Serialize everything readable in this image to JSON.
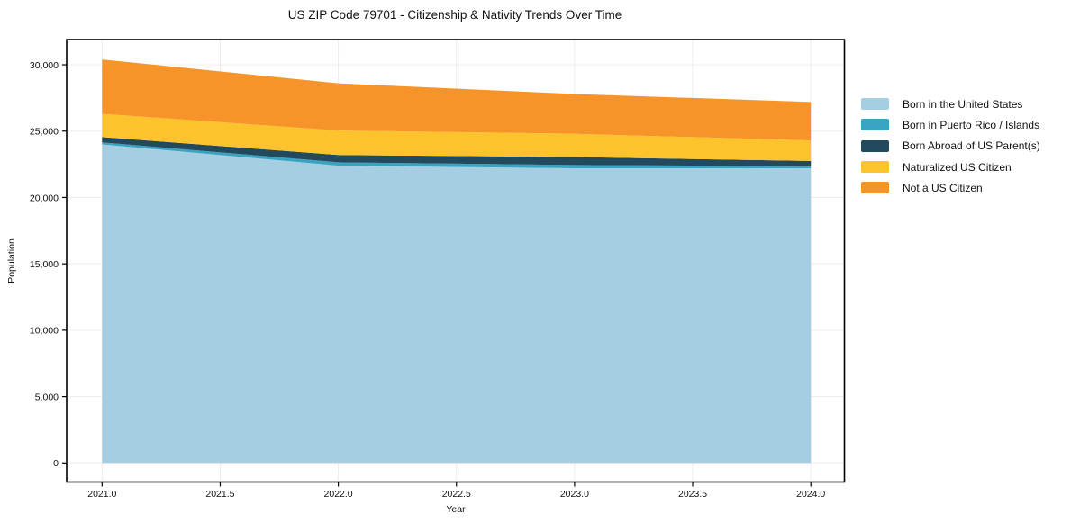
{
  "title": "US ZIP Code 79701 - Citizenship & Nativity Trends Over Time",
  "axes": {
    "xlabel": "Year",
    "ylabel": "Population"
  },
  "legend": {
    "position": "right-outside",
    "items": [
      {
        "label": "Born in the United States",
        "color": "#a5cee3"
      },
      {
        "label": "Born in Puerto Rico / Islands",
        "color": "#39a3c2"
      },
      {
        "label": "Born Abroad of US Parent(s)",
        "color": "#23495c"
      },
      {
        "label": "Naturalized US Citizen",
        "color": "#fcc32d"
      },
      {
        "label": "Not a US Citizen",
        "color": "#f79429"
      }
    ]
  },
  "chart_data": {
    "type": "area",
    "stacked": true,
    "title": "US ZIP Code 79701 - Citizenship & Nativity Trends Over Time",
    "xlabel": "Year",
    "ylabel": "Population",
    "x": [
      2021,
      2022,
      2023,
      2024
    ],
    "series": [
      {
        "name": "Born in the United States",
        "color": "#a5cee3",
        "values": [
          24000,
          22400,
          22200,
          22200
        ]
      },
      {
        "name": "Born in Puerto Rico / Islands",
        "color": "#39a3c2",
        "values": [
          150,
          250,
          250,
          150
        ]
      },
      {
        "name": "Born Abroad of US Parent(s)",
        "color": "#23495c",
        "values": [
          400,
          550,
          600,
          400
        ]
      },
      {
        "name": "Naturalized US Citizen",
        "color": "#fcc32d",
        "values": [
          1750,
          1850,
          1750,
          1550
        ]
      },
      {
        "name": "Not a US Citizen",
        "color": "#f79429",
        "values": [
          4100,
          3550,
          3000,
          2900
        ]
      }
    ],
    "totals": [
      30400,
      28600,
      27800,
      27200
    ],
    "xlim": [
      2020.85,
      2024.14
    ],
    "ylim": [
      -1430,
      31900
    ],
    "xtick_values": [
      2021.0,
      2021.5,
      2022.0,
      2022.5,
      2023.0,
      2023.5,
      2024.0
    ],
    "xtick_labels": [
      "2021.0",
      "2021.5",
      "2022.0",
      "2022.5",
      "2023.0",
      "2023.5",
      "2024.0"
    ],
    "ytick_values": [
      0,
      5000,
      10000,
      15000,
      20000,
      25000,
      30000
    ],
    "ytick_labels": [
      "0",
      "5,000",
      "10,000",
      "15,000",
      "20,000",
      "25,000",
      "30,000"
    ],
    "grid": true,
    "legend_position": "right-outside"
  },
  "colors": {
    "background": "#ffffff",
    "grid": "#ececec",
    "frame": "#000000",
    "text": "#111111"
  }
}
